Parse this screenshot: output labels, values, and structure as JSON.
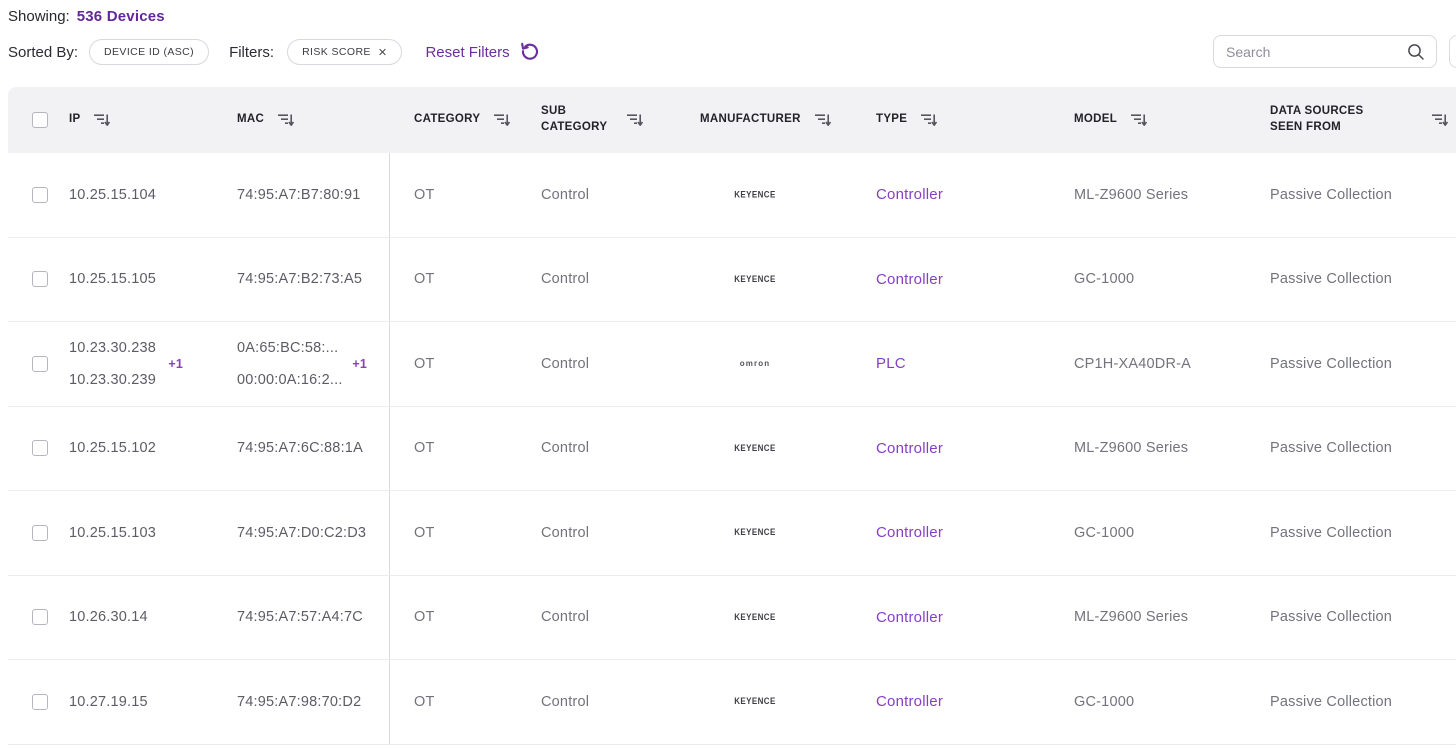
{
  "toolbar": {
    "showing_label": "Showing:",
    "device_count": "536 Devices",
    "sorted_by_label": "Sorted By:",
    "sort_chip_label": "DEVICE ID (ASC)",
    "filters_label": "Filters:",
    "filter_chip_label": "RISK SCORE",
    "filter_chip_remove": "✕",
    "reset_filters_label": "Reset Filters",
    "search_placeholder": "Search"
  },
  "colors": {
    "accent_purple": "#63279b",
    "link_purple": "#8540c4",
    "reset_purple": "#6d2d9c",
    "header_bg": "#f2f2f5"
  },
  "table": {
    "columns": [
      {
        "label": "IP"
      },
      {
        "label": "MAC"
      },
      {
        "label": "CATEGORY"
      },
      {
        "label": "SUB CATEGORY"
      },
      {
        "label": "MANUFACTURER"
      },
      {
        "label": "TYPE"
      },
      {
        "label": "MODEL"
      },
      {
        "label": "DATA SOURCES SEEN FROM"
      }
    ],
    "rows": [
      {
        "ip": [
          "10.25.15.104"
        ],
        "mac": [
          "74:95:A7:B7:80:91"
        ],
        "category": "OT",
        "subcategory": "Control",
        "manufacturer": "KEYENCE",
        "type": "Controller",
        "model": "ML-Z9600 Series",
        "data_sources": "Passive Collection"
      },
      {
        "ip": [
          "10.25.15.105"
        ],
        "mac": [
          "74:95:A7:B2:73:A5"
        ],
        "category": "OT",
        "subcategory": "Control",
        "manufacturer": "KEYENCE",
        "type": "Controller",
        "model": "GC-1000",
        "data_sources": "Passive Collection"
      },
      {
        "ip": [
          "10.23.30.238",
          "10.23.30.239"
        ],
        "ip_more": "+1",
        "mac": [
          "0A:65:BC:58:...",
          "00:00:0A:16:2..."
        ],
        "mac_more": "+1",
        "category": "OT",
        "subcategory": "Control",
        "manufacturer": "OMRON",
        "type": "PLC",
        "model": "CP1H-XA40DR-A",
        "data_sources": "Passive Collection"
      },
      {
        "ip": [
          "10.25.15.102"
        ],
        "mac": [
          "74:95:A7:6C:88:1A"
        ],
        "category": "OT",
        "subcategory": "Control",
        "manufacturer": "KEYENCE",
        "type": "Controller",
        "model": "ML-Z9600 Series",
        "data_sources": "Passive Collection"
      },
      {
        "ip": [
          "10.25.15.103"
        ],
        "mac": [
          "74:95:A7:D0:C2:D3"
        ],
        "category": "OT",
        "subcategory": "Control",
        "manufacturer": "KEYENCE",
        "type": "Controller",
        "model": "GC-1000",
        "data_sources": "Passive Collection"
      },
      {
        "ip": [
          "10.26.30.14"
        ],
        "mac": [
          "74:95:A7:57:A4:7C"
        ],
        "category": "OT",
        "subcategory": "Control",
        "manufacturer": "KEYENCE",
        "type": "Controller",
        "model": "ML-Z9600 Series",
        "data_sources": "Passive Collection"
      },
      {
        "ip": [
          "10.27.19.15"
        ],
        "mac": [
          "74:95:A7:98:70:D2"
        ],
        "category": "OT",
        "subcategory": "Control",
        "manufacturer": "KEYENCE",
        "type": "Controller",
        "model": "GC-1000",
        "data_sources": "Passive Collection"
      }
    ]
  }
}
